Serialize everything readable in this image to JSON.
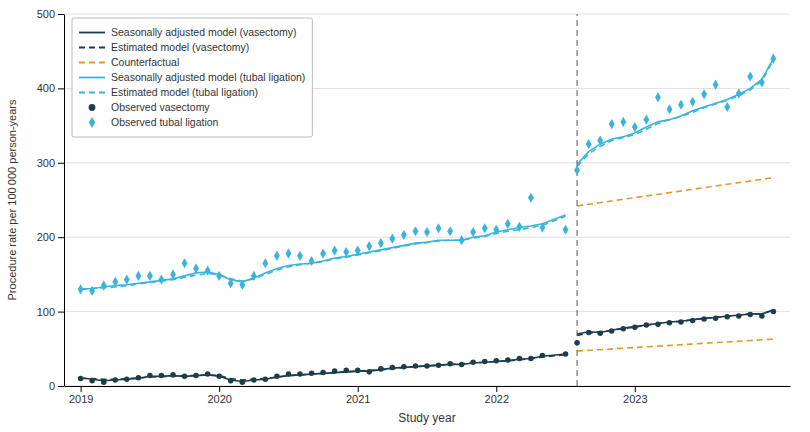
{
  "chart_data": {
    "type": "line",
    "xlabel": "Study year",
    "ylabel": "Procedure rate per 100 000 person-years",
    "xlim": [
      2018.88,
      2024.12
    ],
    "xticks": [
      2019,
      2020,
      2021,
      2022,
      2023
    ],
    "ylim": [
      0,
      500
    ],
    "yticks": [
      0,
      100,
      200,
      300,
      400,
      500
    ],
    "grid": true,
    "legend": "upper left",
    "vline": {
      "x": 2022.583,
      "color": "#555555",
      "line_style": "dashed"
    },
    "series": [
      {
        "name": "Seasonally adjusted model (vasectomy)",
        "color": "#1c3d4e",
        "line_style": "solid",
        "x": [
          2019.0,
          2019.083,
          2019.167,
          2019.25,
          2019.333,
          2019.417,
          2019.5,
          2019.583,
          2019.667,
          2019.75,
          2019.833,
          2019.917,
          2020.0,
          2020.083,
          2020.167,
          2020.25,
          2020.333,
          2020.417,
          2020.5,
          2020.583,
          2020.667,
          2020.75,
          2020.833,
          2020.917,
          2021.0,
          2021.083,
          2021.167,
          2021.25,
          2021.333,
          2021.417,
          2021.5,
          2021.583,
          2021.667,
          2021.75,
          2021.833,
          2021.917,
          2022.0,
          2022.083,
          2022.167,
          2022.25,
          2022.333,
          2022.5,
          null,
          2022.583,
          2022.667,
          2022.75,
          2022.833,
          2022.917,
          2023.0,
          2023.083,
          2023.167,
          2023.25,
          2023.333,
          2023.417,
          2023.5,
          2023.583,
          2023.667,
          2023.75,
          2023.833,
          2023.917,
          2024.0
        ],
        "values": [
          11,
          9,
          7,
          8,
          9,
          10,
          13,
          13,
          14,
          13,
          14,
          15,
          13,
          8,
          6,
          8,
          9,
          12,
          14,
          15,
          16,
          17,
          18,
          19,
          20,
          20,
          22,
          24,
          25,
          26,
          27,
          28,
          29,
          29,
          31,
          32,
          33,
          34,
          36,
          37,
          40,
          43,
          null,
          70,
          73,
          72,
          75,
          78,
          80,
          82,
          84,
          86,
          87,
          89,
          91,
          92,
          94,
          95,
          97,
          97,
          102
        ]
      },
      {
        "name": "Estimated model (vasectomy)",
        "color": "#1c3d4e",
        "line_style": "dashed",
        "x": [
          2019.0,
          2019.083,
          2019.167,
          2019.25,
          2019.333,
          2019.417,
          2019.5,
          2019.583,
          2019.667,
          2019.75,
          2019.833,
          2019.917,
          2020.0,
          2020.083,
          2020.167,
          2020.25,
          2020.333,
          2020.417,
          2020.5,
          2020.583,
          2020.667,
          2020.75,
          2020.833,
          2020.917,
          2021.0,
          2021.083,
          2021.167,
          2021.25,
          2021.333,
          2021.417,
          2021.5,
          2021.583,
          2021.667,
          2021.75,
          2021.833,
          2021.917,
          2022.0,
          2022.083,
          2022.167,
          2022.25,
          2022.333,
          2022.5,
          null,
          2022.583,
          2022.667,
          2022.75,
          2022.833,
          2022.917,
          2023.0,
          2023.083,
          2023.167,
          2023.25,
          2023.333,
          2023.417,
          2023.5,
          2023.583,
          2023.667,
          2023.75,
          2023.833,
          2023.917,
          2024.0
        ],
        "values": [
          10,
          10,
          9,
          9,
          10,
          11,
          12,
          13,
          13,
          14,
          14,
          15,
          14,
          10,
          8,
          9,
          10,
          12,
          14,
          15,
          16,
          17,
          18,
          19,
          20,
          21,
          22,
          23,
          25,
          26,
          27,
          28,
          29,
          30,
          31,
          32,
          33,
          34,
          35,
          37,
          39,
          42,
          null,
          68,
          71,
          73,
          75,
          77,
          79,
          82,
          84,
          86,
          87,
          89,
          91,
          92,
          94,
          95,
          97,
          97,
          102
        ]
      },
      {
        "name": "Counterfactual",
        "color": "#e8952a",
        "line_style": "dashed",
        "x": [
          2022.583,
          2024.0,
          null,
          2022.583,
          2024.0
        ],
        "values": [
          47,
          63,
          null,
          242,
          280
        ]
      },
      {
        "name": "Seasonally adjusted model (tubal ligation)",
        "color": "#3ab4dc",
        "line_style": "solid",
        "x": [
          2019.0,
          2019.083,
          2019.167,
          2019.25,
          2019.333,
          2019.417,
          2019.5,
          2019.583,
          2019.667,
          2019.75,
          2019.833,
          2019.917,
          2020.0,
          2020.083,
          2020.167,
          2020.25,
          2020.333,
          2020.417,
          2020.5,
          2020.583,
          2020.667,
          2020.75,
          2020.833,
          2020.917,
          2021.0,
          2021.083,
          2021.167,
          2021.25,
          2021.333,
          2021.417,
          2021.5,
          2021.583,
          2021.667,
          2021.75,
          2021.833,
          2021.917,
          2022.0,
          2022.083,
          2022.167,
          2022.25,
          2022.333,
          2022.5,
          null,
          2022.583,
          2022.667,
          2022.75,
          2022.833,
          2022.917,
          2023.0,
          2023.083,
          2023.167,
          2023.25,
          2023.333,
          2023.417,
          2023.5,
          2023.583,
          2023.667,
          2023.75,
          2023.833,
          2023.917,
          2024.0
        ],
        "values": [
          130,
          131,
          133,
          135,
          136,
          138,
          140,
          142,
          144,
          148,
          152,
          153,
          150,
          143,
          140,
          145,
          152,
          158,
          162,
          164,
          165,
          168,
          172,
          174,
          177,
          180,
          183,
          186,
          189,
          192,
          193,
          196,
          196,
          196,
          200,
          202,
          207,
          210,
          213,
          215,
          218,
          230,
          null,
          298,
          315,
          325,
          332,
          335,
          340,
          348,
          355,
          358,
          363,
          370,
          375,
          380,
          385,
          392,
          400,
          412,
          440
        ]
      },
      {
        "name": "Estimated model (tubal ligation)",
        "color": "#3ab4dc",
        "line_style": "dashed",
        "x": [
          2019.0,
          2019.083,
          2019.167,
          2019.25,
          2019.333,
          2019.417,
          2019.5,
          2019.583,
          2019.667,
          2019.75,
          2019.833,
          2019.917,
          2020.0,
          2020.083,
          2020.167,
          2020.25,
          2020.333,
          2020.417,
          2020.5,
          2020.583,
          2020.667,
          2020.75,
          2020.833,
          2020.917,
          2021.0,
          2021.083,
          2021.167,
          2021.25,
          2021.333,
          2021.417,
          2021.5,
          2021.583,
          2021.667,
          2021.75,
          2021.833,
          2021.917,
          2022.0,
          2022.083,
          2022.167,
          2022.25,
          2022.333,
          2022.5,
          null,
          2022.583,
          2022.667,
          2022.75,
          2022.833,
          2022.917,
          2023.0,
          2023.083,
          2023.167,
          2023.25,
          2023.333,
          2023.417,
          2023.5,
          2023.583,
          2023.667,
          2023.75,
          2023.833,
          2023.917,
          2024.0
        ],
        "values": [
          130,
          131,
          132,
          133,
          135,
          137,
          139,
          141,
          143,
          146,
          149,
          151,
          150,
          144,
          141,
          144,
          150,
          156,
          160,
          163,
          165,
          167,
          171,
          173,
          176,
          179,
          182,
          185,
          188,
          191,
          193,
          195,
          196,
          196,
          199,
          201,
          205,
          208,
          210,
          213,
          216,
          228,
          null,
          295,
          312,
          322,
          330,
          334,
          338,
          345,
          353,
          358,
          362,
          368,
          374,
          379,
          384,
          390,
          398,
          410,
          438
        ]
      },
      {
        "name": "Observed vasectomy",
        "type": "scatter",
        "color": "#1c3d4e",
        "marker": "circle",
        "x": [
          2019.0,
          2019.083,
          2019.167,
          2019.25,
          2019.333,
          2019.417,
          2019.5,
          2019.583,
          2019.667,
          2019.75,
          2019.833,
          2019.917,
          2020.0,
          2020.083,
          2020.167,
          2020.25,
          2020.333,
          2020.417,
          2020.5,
          2020.583,
          2020.667,
          2020.75,
          2020.833,
          2020.917,
          2021.0,
          2021.083,
          2021.167,
          2021.25,
          2021.333,
          2021.417,
          2021.5,
          2021.583,
          2021.667,
          2021.75,
          2021.833,
          2021.917,
          2022.0,
          2022.083,
          2022.167,
          2022.25,
          2022.333,
          2022.5,
          2022.583,
          2022.667,
          2022.75,
          2022.833,
          2022.917,
          2023.0,
          2023.083,
          2023.167,
          2023.25,
          2023.333,
          2023.417,
          2023.5,
          2023.583,
          2023.667,
          2023.75,
          2023.833,
          2023.917,
          2024.0
        ],
        "values": [
          10,
          7,
          5,
          8,
          9,
          11,
          14,
          14,
          15,
          13,
          14,
          16,
          13,
          7,
          5,
          8,
          9,
          13,
          16,
          16,
          17,
          18,
          20,
          21,
          21,
          19,
          23,
          25,
          26,
          27,
          27,
          28,
          30,
          29,
          32,
          33,
          34,
          35,
          37,
          37,
          41,
          43,
          58,
          72,
          71,
          74,
          77,
          79,
          82,
          83,
          85,
          86,
          88,
          90,
          91,
          93,
          94,
          96,
          94,
          100
        ]
      },
      {
        "name": "Observed tubal ligation",
        "type": "scatter",
        "color": "#3ab4dc",
        "marker": "diamond",
        "x": [
          2019.0,
          2019.083,
          2019.167,
          2019.25,
          2019.333,
          2019.417,
          2019.5,
          2019.583,
          2019.667,
          2019.75,
          2019.833,
          2019.917,
          2020.0,
          2020.083,
          2020.167,
          2020.25,
          2020.333,
          2020.417,
          2020.5,
          2020.583,
          2020.667,
          2020.75,
          2020.833,
          2020.917,
          2021.0,
          2021.083,
          2021.167,
          2021.25,
          2021.333,
          2021.417,
          2021.5,
          2021.583,
          2021.667,
          2021.75,
          2021.833,
          2021.917,
          2022.0,
          2022.083,
          2022.167,
          2022.25,
          2022.333,
          2022.5,
          2022.583,
          2022.667,
          2022.75,
          2022.833,
          2022.917,
          2023.0,
          2023.083,
          2023.167,
          2023.25,
          2023.333,
          2023.417,
          2023.5,
          2023.583,
          2023.667,
          2023.75,
          2023.833,
          2023.917,
          2024.0
        ],
        "values": [
          130,
          128,
          135,
          140,
          143,
          148,
          148,
          143,
          150,
          165,
          158,
          155,
          148,
          138,
          136,
          148,
          165,
          175,
          178,
          175,
          168,
          178,
          182,
          180,
          182,
          188,
          192,
          198,
          203,
          208,
          207,
          212,
          208,
          196,
          207,
          212,
          210,
          218,
          214,
          253,
          213,
          210,
          290,
          325,
          330,
          352,
          355,
          348,
          358,
          388,
          372,
          378,
          382,
          392,
          405,
          375,
          393,
          416,
          408,
          440
        ]
      }
    ]
  }
}
